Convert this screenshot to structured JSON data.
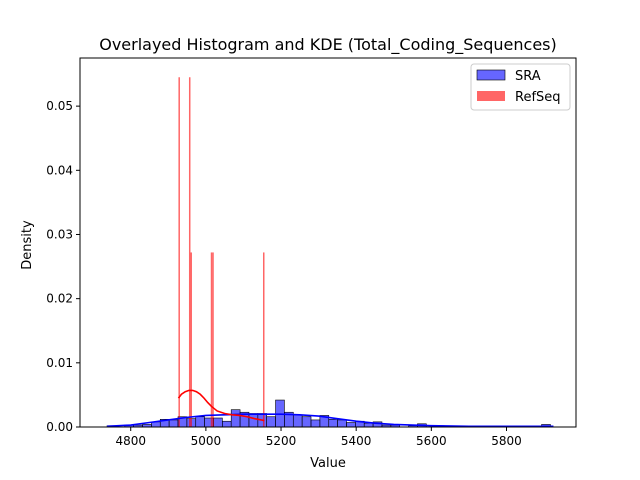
{
  "chart_data": {
    "type": "bar",
    "title": "Overlayed Histogram and KDE (Total_Coding_Sequences)",
    "xlabel": "Value",
    "ylabel": "Density",
    "xlim": [
      4665,
      5985
    ],
    "ylim": [
      0,
      0.0575
    ],
    "xticks": [
      4800,
      5000,
      5200,
      5400,
      5600,
      5800
    ],
    "yticks": [
      0.0,
      0.01,
      0.02,
      0.03,
      0.04,
      0.05
    ],
    "xtick_labels": [
      "4800",
      "5000",
      "5200",
      "5400",
      "5600",
      "5800"
    ],
    "ytick_labels": [
      "0.00",
      "0.01",
      "0.02",
      "0.03",
      "0.04",
      "0.05"
    ],
    "legend": {
      "position": "top-right"
    },
    "grid": false,
    "series": [
      {
        "name": "SRA",
        "kind": "histogram",
        "color": "#0000ff",
        "alpha": 0.6,
        "bin_width": 23.6,
        "bins": [
          {
            "x0": 4737.0,
            "y": 0.0002
          },
          {
            "x0": 4784.2,
            "y": 0.0003
          },
          {
            "x0": 4807.8,
            "y": 0.0003
          },
          {
            "x0": 4831.4,
            "y": 0.0004
          },
          {
            "x0": 4855.0,
            "y": 0.0008
          },
          {
            "x0": 4878.6,
            "y": 0.0012
          },
          {
            "x0": 4902.2,
            "y": 0.0011
          },
          {
            "x0": 4925.8,
            "y": 0.0016
          },
          {
            "x0": 4949.4,
            "y": 0.0013
          },
          {
            "x0": 4973.0,
            "y": 0.0016
          },
          {
            "x0": 4996.6,
            "y": 0.0014
          },
          {
            "x0": 5020.2,
            "y": 0.0014
          },
          {
            "x0": 5043.8,
            "y": 0.0009
          },
          {
            "x0": 5067.4,
            "y": 0.0027
          },
          {
            "x0": 5091.0,
            "y": 0.0023
          },
          {
            "x0": 5114.6,
            "y": 0.0021
          },
          {
            "x0": 5138.2,
            "y": 0.0021
          },
          {
            "x0": 5161.8,
            "y": 0.0016
          },
          {
            "x0": 5185.4,
            "y": 0.0042
          },
          {
            "x0": 5209.0,
            "y": 0.0023
          },
          {
            "x0": 5232.6,
            "y": 0.0019
          },
          {
            "x0": 5256.2,
            "y": 0.0016
          },
          {
            "x0": 5279.8,
            "y": 0.0011
          },
          {
            "x0": 5303.4,
            "y": 0.0018
          },
          {
            "x0": 5327.0,
            "y": 0.0012
          },
          {
            "x0": 5350.6,
            "y": 0.0011
          },
          {
            "x0": 5374.2,
            "y": 0.0007
          },
          {
            "x0": 5397.8,
            "y": 0.0009
          },
          {
            "x0": 5421.4,
            "y": 0.0006
          },
          {
            "x0": 5445.0,
            "y": 0.0008
          },
          {
            "x0": 5468.6,
            "y": 0.0003
          },
          {
            "x0": 5492.2,
            "y": 0.0003
          },
          {
            "x0": 5539.4,
            "y": 0.0002
          },
          {
            "x0": 5563.0,
            "y": 0.0005
          },
          {
            "x0": 5610.2,
            "y": 0.0002
          },
          {
            "x0": 5893.4,
            "y": 0.0004
          }
        ],
        "kde": {
          "color": "#0000ff",
          "x": [
            4737,
            4800,
            4850,
            4900,
            4950,
            5000,
            5050,
            5100,
            5150,
            5200,
            5250,
            5300,
            5350,
            5400,
            5450,
            5500,
            5550,
            5600,
            5700,
            5800,
            5900,
            5925
          ],
          "y": [
            0.0001,
            0.0003,
            0.0007,
            0.0011,
            0.0015,
            0.0018,
            0.0019,
            0.002,
            0.002,
            0.002,
            0.0019,
            0.0017,
            0.0013,
            0.0009,
            0.0006,
            0.0004,
            0.0003,
            0.0002,
            0.0001,
            0.0001,
            0.0001,
            0.0001
          ]
        }
      },
      {
        "name": "RefSeq",
        "kind": "histogram",
        "color": "#ff0000",
        "alpha": 0.6,
        "bars": [
          {
            "x0": 4927,
            "x1": 4931,
            "y": 0.0545
          },
          {
            "x0": 4955,
            "x1": 4959,
            "y": 0.0545
          },
          {
            "x0": 4959,
            "x1": 4963,
            "y": 0.0272
          },
          {
            "x0": 5013,
            "x1": 5017,
            "y": 0.0272
          },
          {
            "x0": 5017,
            "x1": 5021,
            "y": 0.0272
          },
          {
            "x0": 5152,
            "x1": 5156,
            "y": 0.0272
          }
        ],
        "kde": {
          "color": "#ff0000",
          "x": [
            4927,
            4935,
            4945,
            4955,
            4965,
            4975,
            4985,
            4995,
            5005,
            5015,
            5030,
            5050,
            5070,
            5090,
            5110,
            5130,
            5156
          ],
          "y": [
            0.0045,
            0.0051,
            0.0055,
            0.0057,
            0.0057,
            0.0055,
            0.0051,
            0.0045,
            0.0038,
            0.0032,
            0.0025,
            0.0021,
            0.0019,
            0.0018,
            0.0016,
            0.0013,
            0.001
          ]
        }
      }
    ]
  }
}
